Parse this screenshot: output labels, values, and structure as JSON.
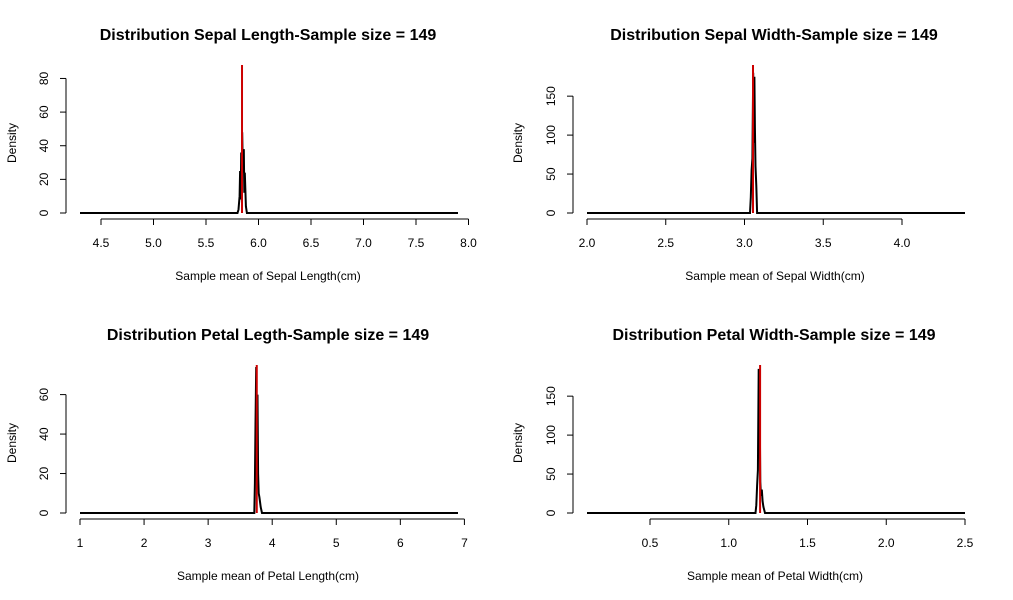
{
  "chart_data": [
    {
      "type": "line",
      "title": "Distribution Sepal Length-Sample size =  149",
      "xlabel": "Sample mean of Sepal Length(cm)",
      "ylabel": "Density",
      "xlim": [
        4.3,
        7.9
      ],
      "ylim": [
        0,
        88
      ],
      "x_ticks": [
        4.5,
        5.0,
        5.5,
        6.0,
        6.5,
        7.0,
        7.5,
        8.0
      ],
      "x_tick_labels": [
        "4.5",
        "5.0",
        "5.5",
        "6.0",
        "6.5",
        "7.0",
        "7.5",
        "8.0"
      ],
      "y_ticks": [
        0,
        20,
        40,
        60,
        80
      ],
      "y_tick_labels": [
        "0",
        "20",
        "40",
        "60",
        "80"
      ],
      "x": [
        4.3,
        5.8,
        5.81,
        5.82,
        5.825,
        5.83,
        5.835,
        5.84,
        5.845,
        5.85,
        5.855,
        5.86,
        5.865,
        5.87,
        5.88,
        5.89,
        7.9
      ],
      "y": [
        0,
        0,
        2,
        10,
        25,
        8,
        36,
        15,
        48,
        30,
        24,
        38,
        12,
        24,
        4,
        0,
        0
      ],
      "reference_line": {
        "x": 5.843,
        "color": "#cc0000"
      }
    },
    {
      "type": "line",
      "title": "Distribution Sepal Width-Sample size =  149",
      "xlabel": "Sample mean of Sepal Width(cm)",
      "ylabel": "Density",
      "xlim": [
        2.0,
        4.4
      ],
      "ylim": [
        0,
        190
      ],
      "x_ticks": [
        2.0,
        2.5,
        3.0,
        3.5,
        4.0
      ],
      "x_tick_labels": [
        "2.0",
        "2.5",
        "3.0",
        "3.5",
        "4.0"
      ],
      "y_ticks": [
        0,
        50,
        100,
        150
      ],
      "y_tick_labels": [
        "0",
        "50",
        "100",
        "150"
      ],
      "x": [
        2.0,
        3.035,
        3.04,
        3.045,
        3.05,
        3.055,
        3.06,
        3.063,
        3.066,
        3.07,
        3.075,
        3.08,
        4.4
      ],
      "y": [
        0,
        0,
        20,
        55,
        70,
        180,
        90,
        175,
        110,
        60,
        35,
        0,
        0
      ],
      "reference_line": {
        "x": 3.054,
        "color": "#cc0000"
      }
    },
    {
      "type": "line",
      "title": "Distribution Petal Legth-Sample size =  149",
      "xlabel": "Sample mean of Petal Length(cm)",
      "ylabel": "Density",
      "xlim": [
        1.0,
        6.9
      ],
      "ylim": [
        0,
        75
      ],
      "x_ticks": [
        1,
        2,
        3,
        4,
        5,
        6,
        7
      ],
      "x_tick_labels": [
        "1",
        "2",
        "3",
        "4",
        "5",
        "6",
        "7"
      ],
      "y_ticks": [
        0,
        20,
        40,
        60
      ],
      "y_tick_labels": [
        "0",
        "20",
        "40",
        "60"
      ],
      "x": [
        1.0,
        3.72,
        3.73,
        3.74,
        3.75,
        3.76,
        3.77,
        3.78,
        3.79,
        3.8,
        3.82,
        3.84,
        6.9
      ],
      "y": [
        0,
        0,
        15,
        45,
        74,
        30,
        60,
        20,
        10,
        8,
        3,
        0,
        0
      ],
      "reference_line": {
        "x": 3.759,
        "color": "#cc0000"
      }
    },
    {
      "type": "line",
      "title": "Distribution Petal Width-Sample size =  149",
      "xlabel": "Sample mean of Petal Width(cm)",
      "ylabel": "Density",
      "xlim": [
        0.1,
        2.5
      ],
      "ylim": [
        0,
        190
      ],
      "x_ticks": [
        0.5,
        1.0,
        1.5,
        2.0,
        2.5
      ],
      "x_tick_labels": [
        "0.5",
        "1.0",
        "1.5",
        "2.0",
        "2.5"
      ],
      "y_ticks": [
        0,
        50,
        100,
        150
      ],
      "y_tick_labels": [
        "0",
        "50",
        "100",
        "150"
      ],
      "x": [
        0.1,
        1.17,
        1.175,
        1.18,
        1.185,
        1.19,
        1.195,
        1.2,
        1.205,
        1.21,
        1.215,
        1.22,
        1.23,
        2.5
      ],
      "y": [
        0,
        0,
        10,
        35,
        55,
        185,
        160,
        40,
        22,
        30,
        15,
        8,
        0,
        0
      ],
      "reference_line": {
        "x": 1.199,
        "color": "#cc0000"
      }
    }
  ]
}
